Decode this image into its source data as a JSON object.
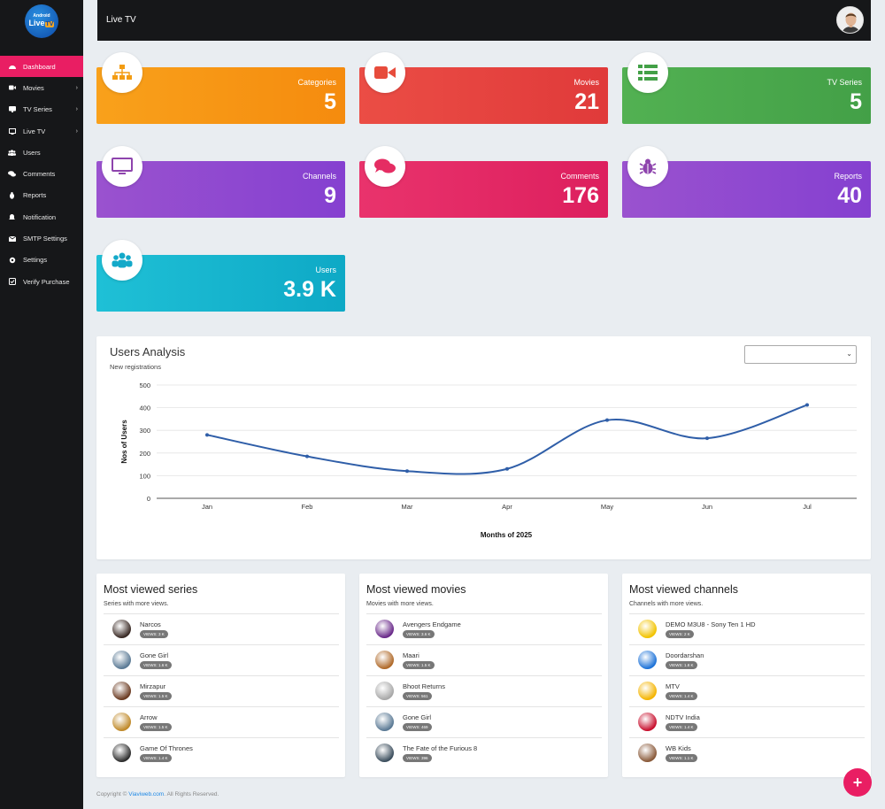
{
  "logo": {
    "line1": "Android",
    "line2": "Live",
    "line3": "TV"
  },
  "sidebar": {
    "items": [
      {
        "label": "Dashboard",
        "icon": "dashboard-icon"
      },
      {
        "label": "Movies",
        "icon": "video-icon"
      },
      {
        "label": "TV Series",
        "icon": "tv-series-icon"
      },
      {
        "label": "Live TV",
        "icon": "live-tv-icon"
      },
      {
        "label": "Users",
        "icon": "users-icon"
      },
      {
        "label": "Comments",
        "icon": "comments-icon"
      },
      {
        "label": "Reports",
        "icon": "reports-icon"
      },
      {
        "label": "Notification",
        "icon": "bell-icon"
      },
      {
        "label": "SMTP Settings",
        "icon": "envelope-icon"
      },
      {
        "label": "Settings",
        "icon": "gear-icon"
      },
      {
        "label": "Verify Purchase",
        "icon": "check-square-icon"
      }
    ],
    "arrow": "›"
  },
  "header": {
    "title": "Live TV"
  },
  "stats": [
    {
      "label": "Categories",
      "value": "5",
      "icon": "sitemap-icon",
      "color": "#f7931e"
    },
    {
      "label": "Movies",
      "value": "21",
      "icon": "video-camera-icon",
      "color": "#e94141"
    },
    {
      "label": "TV Series",
      "value": "5",
      "icon": "list-icon",
      "color": "#4caf50"
    },
    {
      "label": "Channels",
      "value": "9",
      "icon": "monitor-icon",
      "color": "#8e44cf"
    },
    {
      "label": "Comments",
      "value": "176",
      "icon": "chat-bubbles-icon",
      "color": "#e52d63"
    },
    {
      "label": "Reports",
      "value": "40",
      "icon": "bug-icon",
      "color": "#8e44cf"
    },
    {
      "label": "Users",
      "value": "3.9 K",
      "icon": "users-group-icon",
      "color": "#13b8cf"
    }
  ],
  "analysis": {
    "title": "Users Analysis",
    "subtitle": "New registrations",
    "select_value": "",
    "select_arrow": "⌄"
  },
  "chart_data": {
    "type": "line",
    "categories": [
      "Jan",
      "Feb",
      "Mar",
      "Apr",
      "May",
      "Jun",
      "Jul"
    ],
    "values": [
      280,
      185,
      120,
      130,
      345,
      265,
      412
    ],
    "ylim": [
      0,
      500
    ],
    "yticks": [
      0,
      100,
      200,
      300,
      400,
      500
    ],
    "xlabel": "Months of 2025",
    "ylabel": "Nos of Users",
    "grid": true,
    "color": "#2f5ea8"
  },
  "lists": [
    {
      "title": "Most viewed series",
      "subtitle": "Series with more views.",
      "items": [
        {
          "name": "Narcos",
          "views": "VIEWS: 3 K",
          "color": "#3a2a25"
        },
        {
          "name": "Gone Girl",
          "views": "VIEWS: 1.6 K",
          "color": "#5b7a95"
        },
        {
          "name": "Mirzapur",
          "views": "VIEWS: 1.5 K",
          "color": "#6b3b22"
        },
        {
          "name": "Arrow",
          "views": "VIEWS: 1.5 K",
          "color": "#c08a2a"
        },
        {
          "name": "Game Of Thrones",
          "views": "VIEWS: 1.4 K",
          "color": "#2e2e2e"
        }
      ]
    },
    {
      "title": "Most viewed movies",
      "subtitle": "Movies with more views.",
      "items": [
        {
          "name": "Avengers Endgame",
          "views": "VIEWS: 3.6 K",
          "color": "#6a2a8a"
        },
        {
          "name": "Maari",
          "views": "VIEWS: 1.5 K",
          "color": "#b06a2a"
        },
        {
          "name": "Bhoot Returns",
          "views": "VIEWS: 561",
          "color": "#a8a8a8"
        },
        {
          "name": "Gone Girl",
          "views": "VIEWS: 469",
          "color": "#5b7a95"
        },
        {
          "name": "The Fate of the Furious 8",
          "views": "VIEWS: 396",
          "color": "#3d4f5e"
        }
      ]
    },
    {
      "title": "Most viewed channels",
      "subtitle": "Channels with more views.",
      "items": [
        {
          "name": "DEMO M3U8 - Sony Ten 1 HD",
          "views": "VIEWS: 2 K",
          "color": "#f2c300"
        },
        {
          "name": "Doordarshan",
          "views": "VIEWS: 1.8 K",
          "color": "#1e73d8"
        },
        {
          "name": "MTV",
          "views": "VIEWS: 1.4 K",
          "color": "#f4b400"
        },
        {
          "name": "NDTV India",
          "views": "VIEWS: 1.4 K",
          "color": "#c8102e"
        },
        {
          "name": "WB Kids",
          "views": "VIEWS: 1.1 K",
          "color": "#8a5a3a"
        }
      ]
    }
  ],
  "footer": {
    "prefix": "Copyright © ",
    "link": "Viaviweb.com",
    "suffix": ". All Rights Reserved."
  },
  "fab": {
    "label": "+"
  }
}
